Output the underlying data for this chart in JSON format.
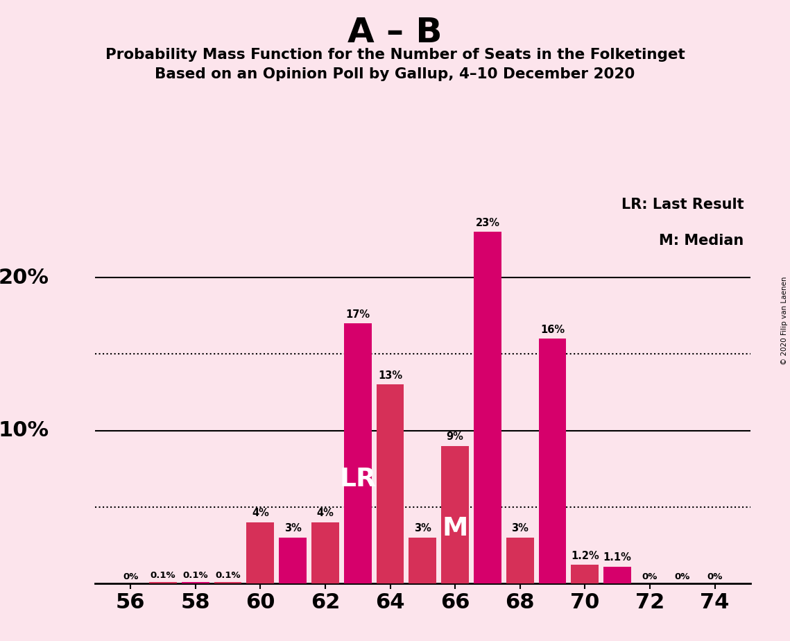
{
  "title_main": "A – B",
  "title_sub1": "Probability Mass Function for the Number of Seats in the Folketinget",
  "title_sub2": "Based on an Opinion Poll by Gallup, 4–10 December 2020",
  "background_color": "#fce4ec",
  "seats": [
    56,
    57,
    58,
    59,
    60,
    61,
    62,
    63,
    64,
    65,
    66,
    67,
    68,
    69,
    70,
    71,
    72,
    73,
    74
  ],
  "values": [
    0.0,
    0.1,
    0.1,
    0.1,
    4.0,
    3.0,
    4.0,
    17.0,
    13.0,
    3.0,
    9.0,
    23.0,
    3.0,
    16.0,
    1.2,
    1.1,
    0.0,
    0.0,
    0.0
  ],
  "magenta_indices": [
    2,
    5,
    7,
    11,
    13,
    15
  ],
  "magenta_color": "#d6006b",
  "red_color": "#d63058",
  "label_LR_seat": 63,
  "label_M_seat": 66,
  "bar_labels": {
    "56": "0%",
    "57": "0.1%",
    "58": "0.1%",
    "59": "0.1%",
    "60": "4%",
    "61": "3%",
    "62": "4%",
    "63": "17%",
    "64": "13%",
    "65": "3%",
    "66": "9%",
    "67": "23%",
    "68": "3%",
    "69": "16%",
    "70": "1.2%",
    "71": "1.1%",
    "72": "0%",
    "73": "0%",
    "74": "0%"
  },
  "xtick_positions": [
    56,
    58,
    60,
    62,
    64,
    66,
    68,
    70,
    72,
    74
  ],
  "dotted_lines": [
    5.0,
    15.0
  ],
  "solid_lines": [
    10.0,
    20.0
  ],
  "legend_text1": "LR: Last Result",
  "legend_text2": "M: Median",
  "copyright_text": "© 2020 Filip van Laenen",
  "ylim": [
    0,
    26
  ],
  "xlim": [
    54.9,
    75.1
  ]
}
